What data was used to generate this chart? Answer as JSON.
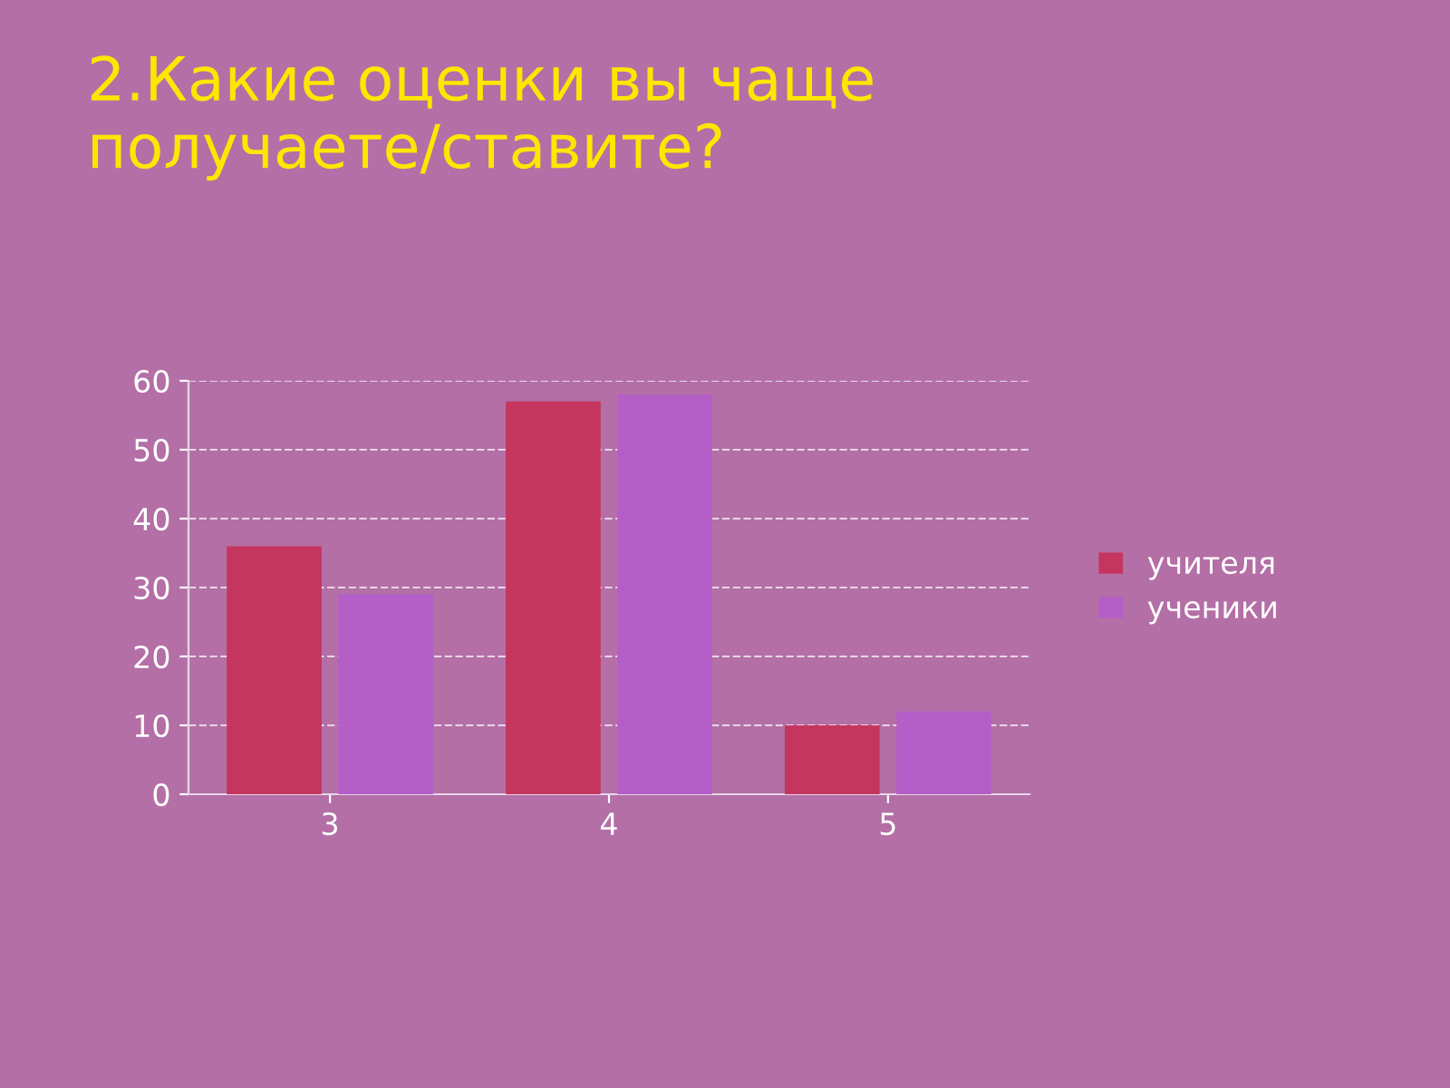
{
  "chart_data": {
    "type": "bar",
    "title": "2.Какие оценки вы чаще получаете/ставите?",
    "categories": [
      "3",
      "4",
      "5"
    ],
    "series": [
      {
        "name": "учителя",
        "color": "#c4365f",
        "values": [
          36,
          57,
          10
        ]
      },
      {
        "name": "ученики",
        "color": "#b45fc8",
        "values": [
          29,
          58,
          12
        ]
      }
    ],
    "ylim": [
      0,
      60
    ],
    "yticks": [
      0,
      10,
      20,
      30,
      40,
      50,
      60
    ],
    "grid": "y",
    "legend": "right"
  }
}
